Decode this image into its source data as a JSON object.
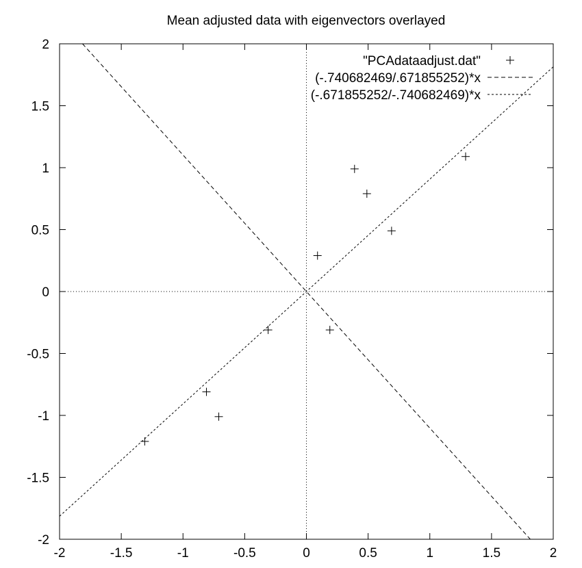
{
  "chart_data": {
    "type": "scatter",
    "title": "Mean adjusted data with eigenvectors overlayed",
    "xlabel": "",
    "ylabel": "",
    "xlim": [
      -2,
      2
    ],
    "ylim": [
      -2,
      2
    ],
    "x_ticks": [
      -2,
      -1.5,
      -1,
      -0.5,
      0,
      0.5,
      1,
      1.5,
      2
    ],
    "y_ticks": [
      -2,
      -1.5,
      -1,
      -0.5,
      0,
      0.5,
      1,
      1.5,
      2
    ],
    "x_tick_labels": [
      "-2",
      "-1.5",
      "-1",
      "-0.5",
      "0",
      "0.5",
      "1",
      "1.5",
      "2"
    ],
    "y_tick_labels": [
      "-2",
      "-1.5",
      "-1",
      "-0.5",
      "0",
      "0.5",
      "1",
      "1.5",
      "2"
    ],
    "grid": false,
    "zero_axes": true,
    "legend_position": "top-right",
    "series": [
      {
        "name": "\"PCAdataadjust.dat\"",
        "kind": "points",
        "marker": "+",
        "x": [
          0.69,
          -1.31,
          0.39,
          0.09,
          1.29,
          0.49,
          0.19,
          -0.81,
          -0.31,
          -0.71
        ],
        "y": [
          0.49,
          -1.21,
          0.99,
          0.29,
          1.09,
          0.79,
          -0.31,
          -0.81,
          -0.31,
          -1.01
        ]
      },
      {
        "name": "(-.740682469/.671855252)*x",
        "kind": "line",
        "slope": -1.10244,
        "dash": "long"
      },
      {
        "name": "(-.671855252/-.740682469)*x",
        "kind": "line",
        "slope": 0.90708,
        "dash": "short"
      }
    ]
  }
}
